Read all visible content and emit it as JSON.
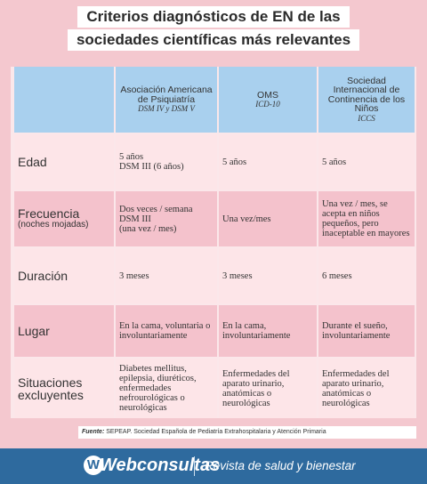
{
  "title": {
    "line1": "Criterios diagnósticos de EN de las",
    "line2": "sociedades científicas más relevantes"
  },
  "table": {
    "header": {
      "col1": {
        "name": "Asociación Americana de Psiquiatría",
        "sub": "DSM IV y DSM V"
      },
      "col2": {
        "name": "OMS",
        "sub": "ICD-10"
      },
      "col3": {
        "name": "Sociedad Internacional de Continencia de los Niños",
        "sub": "ICCS"
      }
    },
    "rows": [
      {
        "label": "Edad",
        "col1": "5 años\nDSM III (6 años)",
        "col2": "5 años",
        "col3": "5 años"
      },
      {
        "label": "Frecuencia",
        "label_sub": "(noches mojadas)",
        "col1": "Dos veces / semana\nDSM III\n(una vez / mes)",
        "col2": "Una vez/mes",
        "col3": "Una vez / mes, se acepta en niños pequeños, pero inaceptable en mayores"
      },
      {
        "label": "Duración",
        "col1": "3 meses",
        "col2": "3 meses",
        "col3": "6 meses"
      },
      {
        "label": "Lugar",
        "col1": "En la cama, voluntaria o involuntariamente",
        "col2": "En la cama, involuntariamente",
        "col3": "Durante el sueño, involuntariamente"
      },
      {
        "label": "Situaciones excluyentes",
        "col1": "Diabetes mellitus, epilepsia, diuréticos, enfermedades nefrourológicas o neurológicas",
        "col2": "Enfermedades del aparato urinario, anatómicas o neurológicas",
        "col3": "Enfermedades del aparato urinario, anatómicas o neurológicas"
      }
    ]
  },
  "source": {
    "label": "Fuente:",
    "text": "SEPEAP. Sociedad Española de Pediatría Extrahospitalaria y Atención Primaria"
  },
  "footer": {
    "logo_letter": "W",
    "brand": "Webconsultas",
    "tagline": "Revista de salud y bienestar"
  },
  "colors": {
    "header_blue": "#a9d0ee",
    "row_light": "#fde5e8",
    "row_dark": "#f4c2cc",
    "background": "#f4c8cf",
    "footer_blue": "#2e6a9e"
  }
}
